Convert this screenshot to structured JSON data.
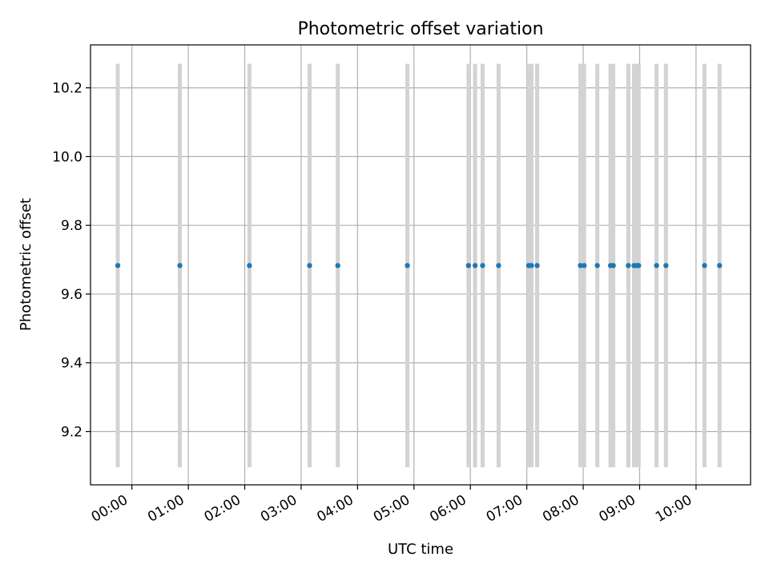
{
  "chart_data": {
    "type": "scatter",
    "title": "Photometric offset variation",
    "xlabel": "UTC time",
    "ylabel": "Photometric offset",
    "x_ticks": [
      "00:00",
      "01:00",
      "02:00",
      "03:00",
      "04:00",
      "05:00",
      "06:00",
      "07:00",
      "08:00",
      "09:00",
      "10:00"
    ],
    "y_ticks": [
      "9.2",
      "9.4",
      "9.6",
      "9.8",
      "10.0",
      "10.2"
    ],
    "xlim": [
      "-00:44",
      "10:58"
    ],
    "ylim": [
      9.045,
      10.325
    ],
    "grid": true,
    "marker_color": "#1f77b4",
    "errorbar_color": "#d3d3d3",
    "points": [
      {
        "x": "-00:15",
        "y": 9.683,
        "yerr": 0.587
      },
      {
        "x": "00:51",
        "y": 9.683,
        "yerr": 0.587
      },
      {
        "x": "02:05",
        "y": 9.683,
        "yerr": 0.587
      },
      {
        "x": "03:09",
        "y": 9.683,
        "yerr": 0.587
      },
      {
        "x": "03:39",
        "y": 9.683,
        "yerr": 0.587
      },
      {
        "x": "04:53",
        "y": 9.683,
        "yerr": 0.587
      },
      {
        "x": "05:58",
        "y": 9.683,
        "yerr": 0.587
      },
      {
        "x": "06:05",
        "y": 9.683,
        "yerr": 0.587
      },
      {
        "x": "06:13",
        "y": 9.683,
        "yerr": 0.587
      },
      {
        "x": "06:30",
        "y": 9.683,
        "yerr": 0.587
      },
      {
        "x": "07:02",
        "y": 9.683,
        "yerr": 0.587
      },
      {
        "x": "07:05",
        "y": 9.683,
        "yerr": 0.587
      },
      {
        "x": "07:11",
        "y": 9.683,
        "yerr": 0.587
      },
      {
        "x": "07:57",
        "y": 9.683,
        "yerr": 0.587
      },
      {
        "x": "08:01",
        "y": 9.683,
        "yerr": 0.587
      },
      {
        "x": "08:15",
        "y": 9.683,
        "yerr": 0.587
      },
      {
        "x": "08:29",
        "y": 9.683,
        "yerr": 0.587
      },
      {
        "x": "08:32",
        "y": 9.683,
        "yerr": 0.587
      },
      {
        "x": "08:48",
        "y": 9.683,
        "yerr": 0.587
      },
      {
        "x": "08:54",
        "y": 9.683,
        "yerr": 0.587
      },
      {
        "x": "08:57",
        "y": 9.683,
        "yerr": 0.587
      },
      {
        "x": "08:59",
        "y": 9.683,
        "yerr": 0.587
      },
      {
        "x": "09:18",
        "y": 9.683,
        "yerr": 0.587
      },
      {
        "x": "09:28",
        "y": 9.683,
        "yerr": 0.587
      },
      {
        "x": "10:09",
        "y": 9.683,
        "yerr": 0.587
      },
      {
        "x": "10:25",
        "y": 9.683,
        "yerr": 0.587
      }
    ]
  }
}
